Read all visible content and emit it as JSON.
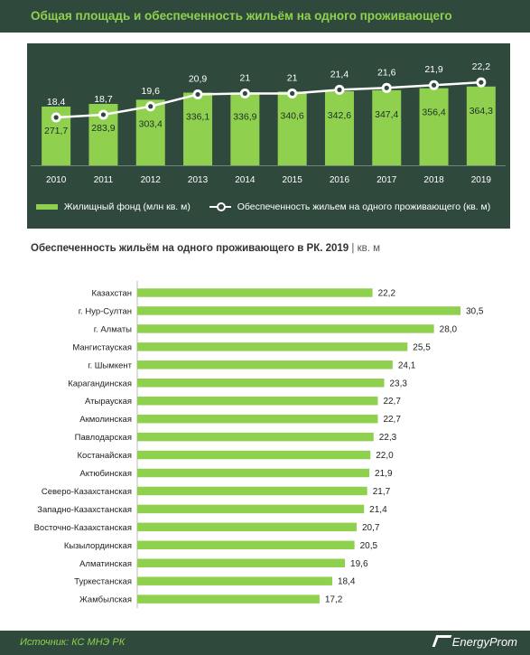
{
  "title": "Общая площадь и обеспеченность жильём на одного проживающего",
  "legend": {
    "bar_label": "Жилищный фонд (млн кв. м)",
    "line_label": "Обеспеченность жильем на одного проживающего (кв. м)"
  },
  "bottom": {
    "title": "Обеспеченность  жильём на одного проживающего  в РК. 2019",
    "unit": "| кв. м"
  },
  "footer": {
    "source": "Источник: КС МНЭ РК",
    "brand": "EnergyProm"
  },
  "colors": {
    "dark": "#2f4a3c",
    "green": "#8fd14f"
  },
  "chart_data": [
    {
      "type": "bar",
      "categories": [
        "2010",
        "2011",
        "2012",
        "2013",
        "2014",
        "2015",
        "2016",
        "2017",
        "2018",
        "2019"
      ],
      "series": [
        {
          "name": "Жилищный фонд (млн кв. м)",
          "type": "bar",
          "values": [
            271.7,
            283.9,
            303.4,
            336.1,
            336.9,
            340.6,
            342.6,
            347.4,
            356.4,
            364.3
          ],
          "labels": [
            "271,7",
            "283,9",
            "303,4",
            "336,1",
            "336,9",
            "340,6",
            "342,6",
            "347,4",
            "356,4",
            "364,3"
          ]
        },
        {
          "name": "Обеспеченность жильем на одного проживающего (кв. м)",
          "type": "line",
          "values": [
            18.4,
            18.7,
            19.6,
            20.9,
            21,
            21,
            21.4,
            21.6,
            21.9,
            22.2
          ],
          "labels": [
            "18,4",
            "18,7",
            "19,6",
            "20,9",
            "21",
            "21",
            "21,4",
            "21,6",
            "21,9",
            "22,2"
          ]
        }
      ],
      "bar_ylim": [
        0,
        380
      ],
      "line_ylim": [
        14,
        23
      ],
      "legend_position": "bottom"
    },
    {
      "type": "bar",
      "orientation": "horizontal",
      "title": "Обеспеченность  жильём на одного проживающего  в РК. 2019",
      "categories": [
        "Казахстан",
        "г. Нур-Султан",
        "г. Алматы",
        "Мангистауская",
        "г. Шымкент",
        "Карагандинская",
        "Атырауская",
        "Акмолинская",
        "Павлодарская",
        "Костанайская",
        "Актюбинская",
        "Северо-Казахстанская",
        "Западно-Казахстанская",
        "Восточно-Казахстанская",
        "Кызылординская",
        "Алматинская",
        "Туркестанская",
        "Жамбылская"
      ],
      "values": [
        22.2,
        30.5,
        28.0,
        25.5,
        24.1,
        23.3,
        22.7,
        22.7,
        22.3,
        22.0,
        21.9,
        21.7,
        21.4,
        20.7,
        20.5,
        19.6,
        18.4,
        17.2
      ],
      "labels": [
        "22,2",
        "30,5",
        "28,0",
        "25,5",
        "24,1",
        "23,3",
        "22,7",
        "22,7",
        "22,3",
        "22,0",
        "21,9",
        "21,7",
        "21,4",
        "20,7",
        "20,5",
        "19,6",
        "18,4",
        "17,2"
      ],
      "xlim": [
        0,
        30.5
      ]
    }
  ]
}
